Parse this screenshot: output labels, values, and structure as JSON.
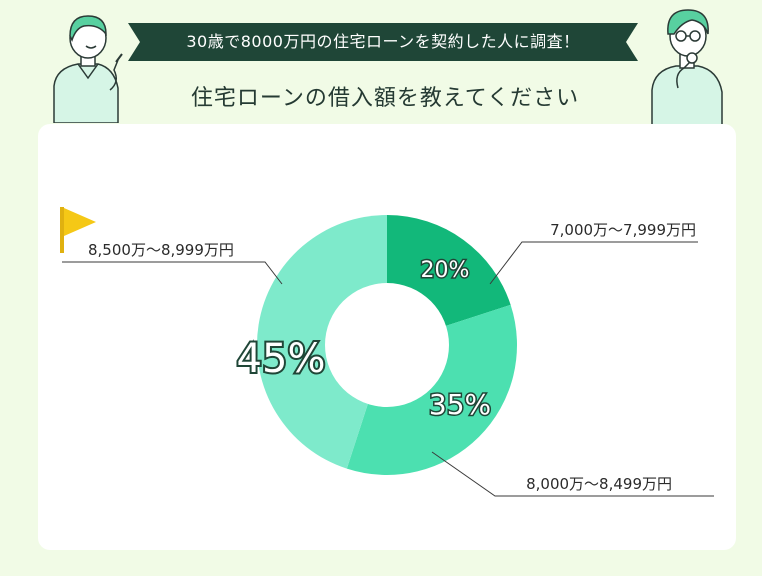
{
  "header": {
    "banner_text": "30歳で8000万円の住宅ローンを契約した人に調査！",
    "question": "住宅ローンの借入額を教えてください"
  },
  "colors": {
    "background": "#f1fbe6",
    "banner": "#1f4637",
    "slice_1": "#12b87a",
    "slice_2": "#4ce0b0",
    "slice_3": "#7eeacb",
    "flag": "#f5c816"
  },
  "chart_data": {
    "type": "pie",
    "donut": true,
    "title": "住宅ローンの借入額を教えてください",
    "slices": [
      {
        "label": "7,000万〜7,999万円",
        "value": 20,
        "display": "20%"
      },
      {
        "label": "8,000万〜8,499万円",
        "value": 35,
        "display": "35%"
      },
      {
        "label": "8,500万〜8,999万円",
        "value": 45,
        "display": "45%"
      }
    ],
    "highlighted": "8,500万〜8,999万円"
  }
}
